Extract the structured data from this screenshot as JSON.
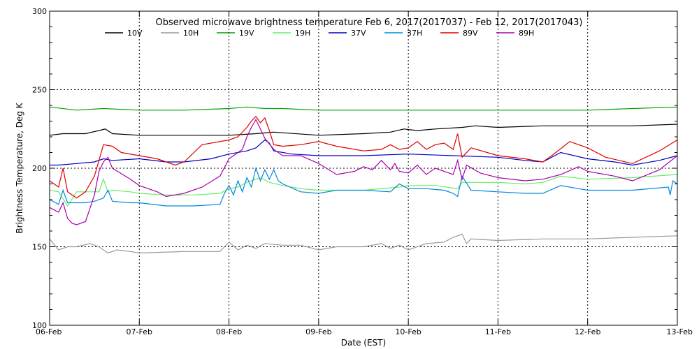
{
  "chart_data": {
    "type": "line",
    "title": "Observed microwave brightness temperature Feb  6, 2017(2017037) - Feb 12, 2017(2017043)",
    "xlabel": "Date (EST)",
    "ylabel": "Brightness Temperature, Deg K",
    "ylim": [
      100,
      300
    ],
    "xlim": [
      0,
      7
    ],
    "x_tick_labels": [
      "06-Feb",
      "07-Feb",
      "08-Feb",
      "09-Feb",
      "10-Feb",
      "11-Feb",
      "12-Feb",
      "13-Feb"
    ],
    "y_ticks": [
      100,
      150,
      200,
      250,
      300
    ],
    "grid": "dotted",
    "legend_placement": "top",
    "x_units": "days since 06-Feb",
    "series": [
      {
        "name": "10V",
        "color": "#000000",
        "x": [
          0,
          0.15,
          0.4,
          0.55,
          0.62,
          0.7,
          1.0,
          1.5,
          2.0,
          2.3,
          2.5,
          3.0,
          3.5,
          3.8,
          3.95,
          4.1,
          4.3,
          4.6,
          4.75,
          5.0,
          5.5,
          6.0,
          6.5,
          7.0
        ],
        "y": [
          221,
          222,
          222,
          224,
          225,
          222,
          221,
          221,
          221,
          222,
          223,
          221,
          222,
          223,
          225,
          224,
          225,
          226,
          227,
          226,
          227,
          227,
          227,
          228
        ]
      },
      {
        "name": "10H",
        "color": "#999999",
        "x": [
          0,
          0.1,
          0.2,
          0.3,
          0.45,
          0.55,
          0.65,
          0.75,
          0.9,
          1.0,
          1.5,
          1.9,
          2.0,
          2.1,
          2.2,
          2.3,
          2.4,
          2.6,
          2.8,
          3.0,
          3.2,
          3.5,
          3.7,
          3.8,
          3.9,
          4.0,
          4.2,
          4.4,
          4.5,
          4.6,
          4.65,
          4.7,
          5.0,
          5.5,
          6.0,
          6.5,
          7.0
        ],
        "y": [
          155,
          148,
          150,
          150,
          152,
          150,
          146,
          148,
          147,
          146,
          147,
          147,
          153,
          148,
          151,
          149,
          152,
          151,
          151,
          148,
          150,
          150,
          152,
          149,
          151,
          148,
          152,
          153,
          156,
          158,
          152,
          155,
          154,
          155,
          155,
          156,
          157
        ]
      },
      {
        "name": "19V",
        "color": "#00a000",
        "x": [
          0,
          0.3,
          0.6,
          1.0,
          1.5,
          2.0,
          2.2,
          2.4,
          2.6,
          3.0,
          3.5,
          4.0,
          4.5,
          5.0,
          5.5,
          6.0,
          6.5,
          7.0
        ],
        "y": [
          239,
          237,
          238,
          237,
          237,
          238,
          239,
          238,
          238,
          237,
          237,
          237,
          237,
          237,
          237,
          237,
          238,
          239
        ]
      },
      {
        "name": "19H",
        "color": "#66ee66",
        "x": [
          0,
          0.1,
          0.2,
          0.3,
          0.45,
          0.55,
          0.6,
          0.65,
          0.7,
          0.9,
          1.0,
          1.3,
          1.6,
          1.9,
          2.0,
          2.1,
          2.2,
          2.35,
          2.45,
          2.6,
          2.8,
          3.0,
          3.5,
          3.9,
          4.0,
          4.3,
          4.55,
          4.6,
          5.0,
          5.3,
          5.5,
          5.7,
          6.0,
          6.5,
          7.0
        ],
        "y": [
          186,
          185,
          176,
          185,
          185,
          185,
          193,
          185,
          186,
          185,
          184,
          183,
          183,
          184,
          187,
          188,
          191,
          194,
          191,
          189,
          187,
          186,
          186,
          188,
          189,
          189,
          187,
          191,
          191,
          190,
          191,
          195,
          193,
          194,
          196
        ]
      },
      {
        "name": "37V",
        "color": "#0000c0",
        "x": [
          0,
          0.1,
          0.3,
          0.5,
          0.6,
          0.7,
          1.0,
          1.3,
          1.5,
          1.8,
          2.0,
          2.2,
          2.3,
          2.4,
          2.45,
          2.5,
          2.7,
          3.0,
          3.5,
          4.0,
          4.5,
          5.0,
          5.3,
          5.5,
          5.7,
          6.0,
          6.3,
          6.5,
          6.8,
          7.0
        ],
        "y": [
          202,
          202,
          203,
          204,
          206,
          205,
          206,
          204,
          204,
          206,
          209,
          211,
          213,
          218,
          216,
          211,
          209,
          208,
          208,
          209,
          208,
          207,
          205,
          204,
          210,
          206,
          204,
          202,
          205,
          208
        ]
      },
      {
        "name": "37H",
        "color": "#0088dd",
        "x": [
          0,
          0.1,
          0.15,
          0.2,
          0.3,
          0.4,
          0.5,
          0.6,
          0.65,
          0.7,
          0.9,
          1.0,
          1.3,
          1.6,
          1.9,
          1.95,
          2.0,
          2.05,
          2.1,
          2.15,
          2.2,
          2.25,
          2.3,
          2.35,
          2.4,
          2.45,
          2.5,
          2.55,
          2.6,
          2.8,
          3.0,
          3.2,
          3.5,
          3.8,
          3.9,
          4.0,
          4.2,
          4.4,
          4.5,
          4.55,
          4.6,
          4.7,
          5.0,
          5.3,
          5.5,
          5.7,
          5.9,
          6.0,
          6.5,
          6.9,
          6.92,
          6.95,
          7.0
        ],
        "y": [
          180,
          177,
          186,
          178,
          178,
          178,
          179,
          181,
          186,
          179,
          178,
          178,
          176,
          176,
          177,
          184,
          189,
          183,
          192,
          185,
          194,
          188,
          200,
          192,
          199,
          193,
          199,
          192,
          190,
          185,
          184,
          186,
          186,
          185,
          190,
          187,
          187,
          186,
          184,
          182,
          195,
          186,
          185,
          184,
          184,
          189,
          187,
          186,
          186,
          188,
          183,
          192,
          190
        ]
      },
      {
        "name": "89V",
        "color": "#dd0000",
        "x": [
          0,
          0.1,
          0.15,
          0.2,
          0.3,
          0.4,
          0.5,
          0.55,
          0.6,
          0.7,
          0.8,
          1.0,
          1.2,
          1.4,
          1.5,
          1.7,
          2.0,
          2.1,
          2.2,
          2.25,
          2.3,
          2.35,
          2.4,
          2.45,
          2.5,
          2.6,
          2.8,
          3.0,
          3.2,
          3.5,
          3.7,
          3.8,
          3.9,
          4.0,
          4.1,
          4.2,
          4.3,
          4.4,
          4.5,
          4.55,
          4.6,
          4.7,
          5.0,
          5.3,
          5.5,
          5.6,
          5.8,
          6.0,
          6.2,
          6.5,
          6.8,
          7.0
        ],
        "y": [
          192,
          188,
          200,
          185,
          181,
          185,
          195,
          205,
          215,
          214,
          210,
          208,
          206,
          202,
          204,
          215,
          218,
          220,
          226,
          230,
          233,
          229,
          232,
          224,
          215,
          214,
          215,
          217,
          214,
          211,
          212,
          215,
          212,
          213,
          217,
          212,
          215,
          216,
          212,
          222,
          207,
          213,
          208,
          206,
          204,
          208,
          217,
          213,
          207,
          203,
          211,
          218
        ]
      },
      {
        "name": "89H",
        "color": "#aa00aa",
        "x": [
          0,
          0.1,
          0.15,
          0.2,
          0.25,
          0.3,
          0.4,
          0.5,
          0.55,
          0.6,
          0.65,
          0.7,
          0.9,
          1.0,
          1.2,
          1.3,
          1.5,
          1.7,
          1.9,
          2.0,
          2.15,
          2.2,
          2.25,
          2.3,
          2.35,
          2.4,
          2.5,
          2.6,
          2.8,
          3.0,
          3.2,
          3.4,
          3.5,
          3.6,
          3.7,
          3.8,
          3.85,
          3.9,
          4.0,
          4.1,
          4.2,
          4.3,
          4.5,
          4.55,
          4.6,
          4.65,
          4.8,
          5.0,
          5.3,
          5.5,
          5.7,
          5.9,
          6.0,
          6.3,
          6.5,
          6.8,
          7.0
        ],
        "y": [
          175,
          172,
          178,
          168,
          165,
          164,
          166,
          183,
          198,
          204,
          207,
          200,
          193,
          189,
          185,
          182,
          184,
          188,
          195,
          206,
          212,
          220,
          226,
          231,
          225,
          219,
          212,
          208,
          208,
          203,
          196,
          198,
          201,
          199,
          205,
          199,
          203,
          198,
          197,
          202,
          196,
          200,
          196,
          205,
          193,
          202,
          197,
          194,
          192,
          193,
          196,
          201,
          198,
          195,
          192,
          199,
          208
        ]
      }
    ]
  }
}
